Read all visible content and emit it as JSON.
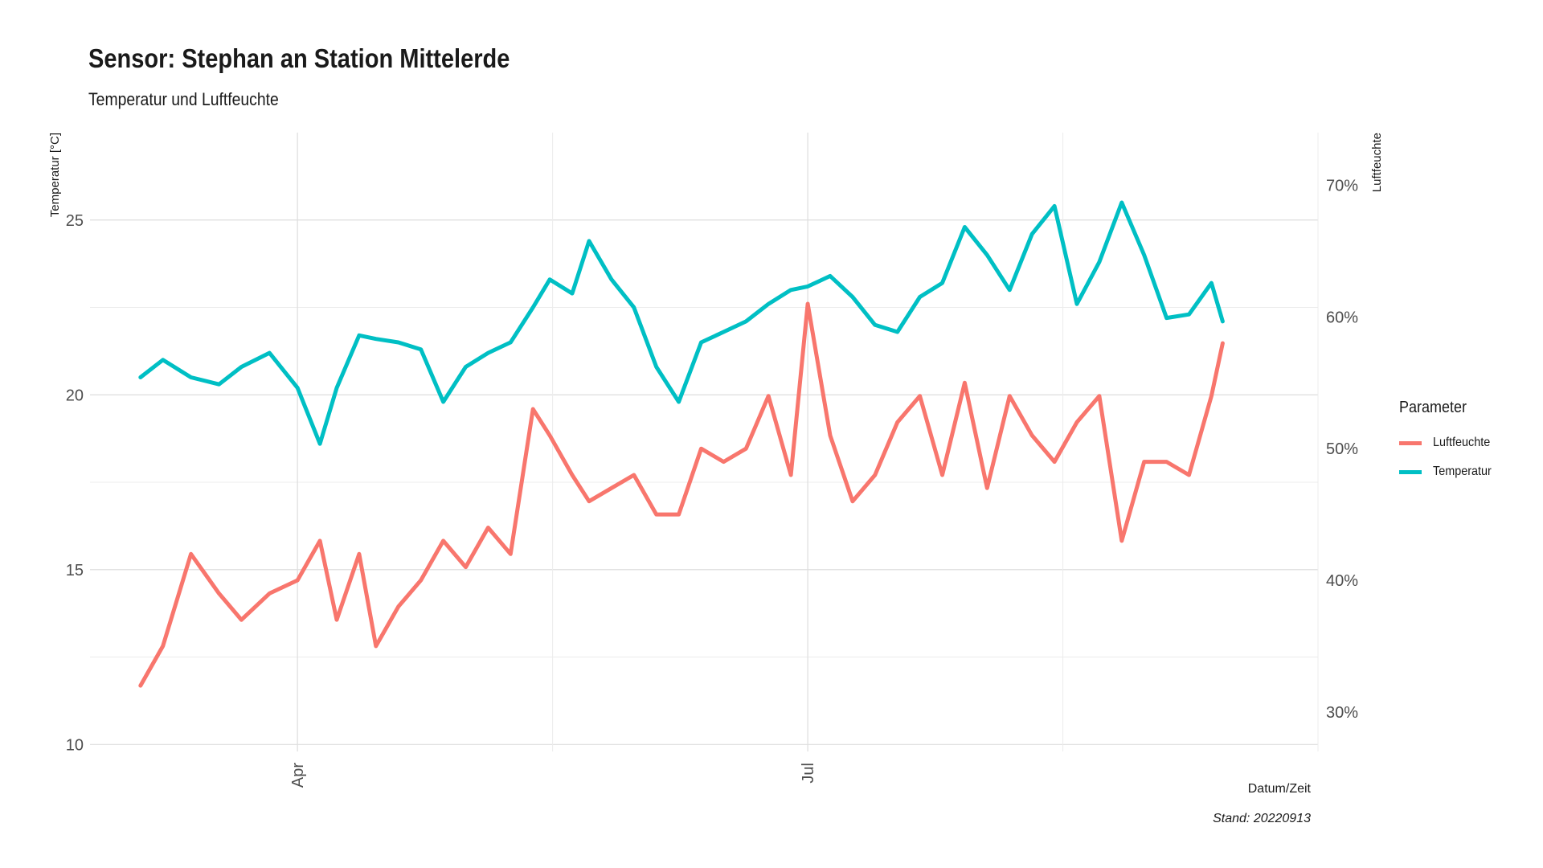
{
  "chart_data": {
    "type": "line",
    "title": "Sensor: Stephan an Station Mittelerde",
    "subtitle": "Temperatur und Luftfeuchte",
    "xlabel": "Datum/Zeit",
    "ylabel": "Temperatur [°C]",
    "ylabel_right": "Luftfeuchte",
    "caption": "Stand: 20220913",
    "x_ticks": [
      {
        "label": "Apr",
        "date": "2022-04-01"
      },
      {
        "label": "Jul",
        "date": "2022-07-01"
      }
    ],
    "xlim": [
      "2022-02-23",
      "2022-09-30"
    ],
    "ylim": [
      9.8,
      27.5
    ],
    "y_ticks": [
      10,
      15,
      20,
      25
    ],
    "y2lim": [
      27,
      74
    ],
    "y2_ticks": [
      "30%",
      "40%",
      "50%",
      "60%",
      "70%"
    ],
    "grid": true,
    "legend": {
      "title": "Parameter",
      "position": "right"
    },
    "series": [
      {
        "name": "Luftfeuchte",
        "color": "#F8766D",
        "axis": "right",
        "unit": "%",
        "x": [
          "2022-03-04",
          "2022-03-08",
          "2022-03-13",
          "2022-03-18",
          "2022-03-22",
          "2022-03-27",
          "2022-04-01",
          "2022-04-05",
          "2022-04-08",
          "2022-04-12",
          "2022-04-15",
          "2022-04-19",
          "2022-04-23",
          "2022-04-27",
          "2022-05-01",
          "2022-05-05",
          "2022-05-09",
          "2022-05-13",
          "2022-05-16",
          "2022-05-20",
          "2022-05-23",
          "2022-05-27",
          "2022-05-31",
          "2022-06-04",
          "2022-06-08",
          "2022-06-12",
          "2022-06-16",
          "2022-06-20",
          "2022-06-24",
          "2022-06-28",
          "2022-07-01",
          "2022-07-05",
          "2022-07-09",
          "2022-07-13",
          "2022-07-17",
          "2022-07-21",
          "2022-07-25",
          "2022-07-29",
          "2022-08-02",
          "2022-08-06",
          "2022-08-10",
          "2022-08-14",
          "2022-08-18",
          "2022-08-22",
          "2022-08-26",
          "2022-08-30",
          "2022-09-03",
          "2022-09-07",
          "2022-09-11",
          "2022-09-13"
        ],
        "y": [
          32,
          35,
          42,
          39,
          37,
          39,
          40,
          43,
          37,
          42,
          35,
          38,
          40,
          43,
          41,
          44,
          42,
          53,
          51,
          48,
          46,
          47,
          48,
          45,
          45,
          50,
          49,
          50,
          54,
          48,
          61,
          51,
          46,
          48,
          52,
          54,
          48,
          55,
          47,
          54,
          51,
          49,
          52,
          54,
          43,
          49,
          49,
          48,
          54,
          58
        ]
      },
      {
        "name": "Temperatur",
        "color": "#00BFC4",
        "axis": "left",
        "unit": "°C",
        "x": [
          "2022-03-04",
          "2022-03-08",
          "2022-03-13",
          "2022-03-18",
          "2022-03-22",
          "2022-03-27",
          "2022-04-01",
          "2022-04-05",
          "2022-04-08",
          "2022-04-12",
          "2022-04-15",
          "2022-04-19",
          "2022-04-23",
          "2022-04-27",
          "2022-05-01",
          "2022-05-05",
          "2022-05-09",
          "2022-05-13",
          "2022-05-16",
          "2022-05-20",
          "2022-05-23",
          "2022-05-27",
          "2022-05-31",
          "2022-06-04",
          "2022-06-08",
          "2022-06-12",
          "2022-06-16",
          "2022-06-20",
          "2022-06-24",
          "2022-06-28",
          "2022-07-01",
          "2022-07-05",
          "2022-07-09",
          "2022-07-13",
          "2022-07-17",
          "2022-07-21",
          "2022-07-25",
          "2022-07-29",
          "2022-08-02",
          "2022-08-06",
          "2022-08-10",
          "2022-08-14",
          "2022-08-18",
          "2022-08-22",
          "2022-08-26",
          "2022-08-30",
          "2022-09-03",
          "2022-09-07",
          "2022-09-11",
          "2022-09-13"
        ],
        "y": [
          20.5,
          21.0,
          20.5,
          20.3,
          20.8,
          21.2,
          20.2,
          18.6,
          20.2,
          21.7,
          21.6,
          21.5,
          21.3,
          19.8,
          20.8,
          21.2,
          21.5,
          22.5,
          23.3,
          22.9,
          24.4,
          23.3,
          22.5,
          20.8,
          19.8,
          21.5,
          21.8,
          22.1,
          22.6,
          23.0,
          23.1,
          23.4,
          22.8,
          22.0,
          21.8,
          22.8,
          23.2,
          24.8,
          24.0,
          23.0,
          24.6,
          25.4,
          22.6,
          23.8,
          25.5,
          24.0,
          22.2,
          22.3,
          23.2,
          22.1
        ]
      }
    ]
  }
}
